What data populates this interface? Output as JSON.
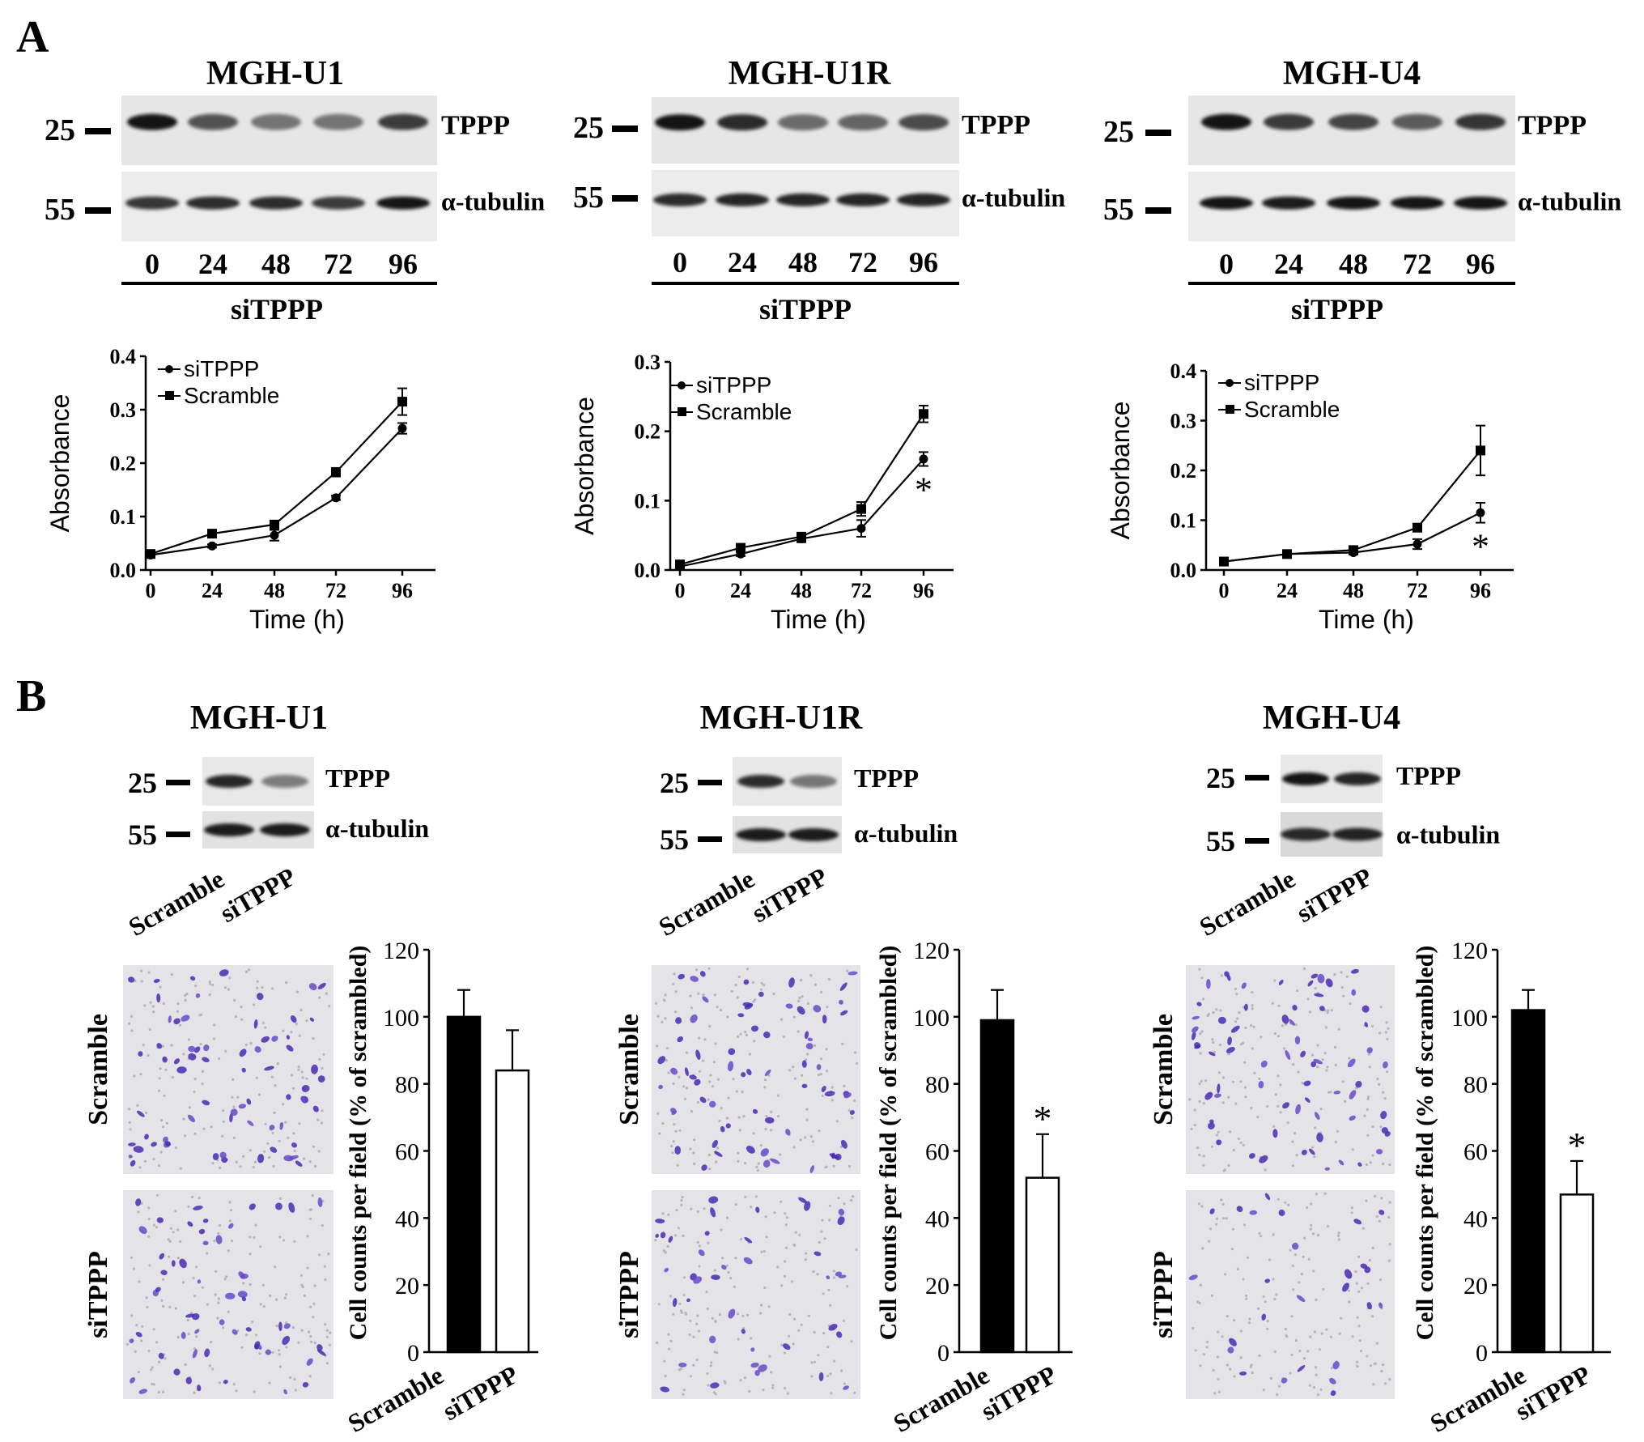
{
  "panels": {
    "A": "A",
    "B": "B"
  },
  "blot_labels": {
    "marker_25": "25",
    "marker_55": "55",
    "tppp": "TPPP",
    "tubulin": "α-tubulin"
  },
  "treatment_label": "siTPPP",
  "lane_labels": [
    "0",
    "24",
    "48",
    "72",
    "96"
  ],
  "sample_labels": [
    "Scramble",
    "siTPPP"
  ],
  "cell_lines": [
    {
      "name": "MGH-U1",
      "tppp_band_intensity": [
        0.95,
        0.55,
        0.35,
        0.35,
        0.7
      ],
      "tubulin_band_intensity": [
        0.75,
        0.8,
        0.8,
        0.7,
        0.95
      ],
      "b_tppp_band_intensity": [
        0.85,
        0.3
      ],
      "b_tubulin_band_intensity": [
        0.9,
        0.9
      ],
      "stain_density": [
        1.0,
        0.8
      ]
    },
    {
      "name": "MGH-U1R",
      "tppp_band_intensity": [
        0.95,
        0.8,
        0.4,
        0.45,
        0.6
      ],
      "tubulin_band_intensity": [
        0.8,
        0.85,
        0.85,
        0.85,
        0.85
      ],
      "b_tppp_band_intensity": [
        0.8,
        0.35
      ],
      "b_tubulin_band_intensity": [
        0.9,
        0.9
      ],
      "stain_density": [
        1.0,
        0.55
      ]
    },
    {
      "name": "MGH-U4",
      "tppp_band_intensity": [
        0.95,
        0.7,
        0.65,
        0.5,
        0.75
      ],
      "tubulin_band_intensity": [
        0.95,
        0.9,
        0.95,
        0.95,
        0.95
      ],
      "b_tppp_band_intensity": [
        0.95,
        0.85
      ],
      "b_tubulin_band_intensity": [
        0.8,
        0.85
      ],
      "stain_density": [
        1.0,
        0.3
      ]
    }
  ],
  "chart_data": [
    {
      "type": "line",
      "panel": "A",
      "cell_line": "MGH-U1",
      "xlabel": "Time (h)",
      "ylabel": "Absorbance",
      "x": [
        0,
        24,
        48,
        72,
        96
      ],
      "ylim": [
        0,
        0.4
      ],
      "yticks": [
        "0.0",
        "0.1",
        "0.2",
        "0.3",
        "0.4"
      ],
      "series": [
        {
          "name": "siTPPP",
          "marker": "circle",
          "values": [
            0.028,
            0.045,
            0.065,
            0.135,
            0.265
          ],
          "errors": [
            0.003,
            0.003,
            0.01,
            0.004,
            0.01
          ]
        },
        {
          "name": "Scramble",
          "marker": "square",
          "values": [
            0.03,
            0.068,
            0.085,
            0.183,
            0.315
          ],
          "errors": [
            0.003,
            0.004,
            0.006,
            0.008,
            0.025
          ]
        }
      ],
      "annotations": []
    },
    {
      "type": "line",
      "panel": "A",
      "cell_line": "MGH-U1R",
      "xlabel": "Time (h)",
      "ylabel": "Absorbance",
      "x": [
        0,
        24,
        48,
        72,
        96
      ],
      "ylim": [
        0,
        0.3
      ],
      "yticks": [
        "0.0",
        "0.1",
        "0.2",
        "0.3"
      ],
      "series": [
        {
          "name": "siTPPP",
          "marker": "circle",
          "values": [
            0.005,
            0.023,
            0.045,
            0.06,
            0.16
          ],
          "errors": [
            0.002,
            0.003,
            0.005,
            0.012,
            0.01
          ]
        },
        {
          "name": "Scramble",
          "marker": "square",
          "values": [
            0.008,
            0.032,
            0.048,
            0.088,
            0.225
          ],
          "errors": [
            0.002,
            0.003,
            0.005,
            0.01,
            0.012
          ]
        }
      ],
      "annotations": [
        {
          "text": "*",
          "x": 96
        }
      ]
    },
    {
      "type": "line",
      "panel": "A",
      "cell_line": "MGH-U4",
      "xlabel": "Time (h)",
      "ylabel": "Absorbance",
      "x": [
        0,
        24,
        48,
        72,
        96
      ],
      "ylim": [
        0,
        0.4
      ],
      "yticks": [
        "0.0",
        "0.1",
        "0.2",
        "0.3",
        "0.4"
      ],
      "series": [
        {
          "name": "siTPPP",
          "marker": "circle",
          "values": [
            0.017,
            0.032,
            0.035,
            0.052,
            0.115
          ],
          "errors": [
            0.003,
            0.003,
            0.004,
            0.01,
            0.02
          ]
        },
        {
          "name": "Scramble",
          "marker": "square",
          "values": [
            0.017,
            0.032,
            0.04,
            0.085,
            0.24
          ],
          "errors": [
            0.003,
            0.003,
            0.004,
            0.005,
            0.05
          ]
        }
      ],
      "annotations": [
        {
          "text": "*",
          "x": 96
        }
      ]
    },
    {
      "type": "bar",
      "panel": "B",
      "cell_line": "MGH-U1",
      "ylabel": "Cell counts per field (% of scrambled)",
      "categories": [
        "Scramble",
        "siTPPP"
      ],
      "values": [
        100,
        84
      ],
      "errors": [
        8,
        12
      ],
      "colors": [
        "#000000",
        "#ffffff"
      ],
      "ylim": [
        0,
        120
      ],
      "yticks": [
        "0",
        "20",
        "40",
        "60",
        "80",
        "100",
        "120"
      ],
      "annotations": []
    },
    {
      "type": "bar",
      "panel": "B",
      "cell_line": "MGH-U1R",
      "ylabel": "Cell counts per field (% of scrambled)",
      "categories": [
        "Scramble",
        "siTPPP"
      ],
      "values": [
        99,
        52
      ],
      "errors": [
        9,
        13
      ],
      "colors": [
        "#000000",
        "#ffffff"
      ],
      "ylim": [
        0,
        120
      ],
      "yticks": [
        "0",
        "20",
        "40",
        "60",
        "80",
        "100",
        "120"
      ],
      "annotations": [
        {
          "text": "*",
          "category": "siTPPP"
        }
      ]
    },
    {
      "type": "bar",
      "panel": "B",
      "cell_line": "MGH-U4",
      "ylabel": "Cell counts per field (% of scrambled)",
      "categories": [
        "Scramble",
        "siTPPP"
      ],
      "values": [
        102,
        47
      ],
      "errors": [
        6,
        10
      ],
      "colors": [
        "#000000",
        "#ffffff"
      ],
      "ylim": [
        0,
        120
      ],
      "yticks": [
        "0",
        "20",
        "40",
        "60",
        "80",
        "100",
        "120"
      ],
      "annotations": [
        {
          "text": "*",
          "category": "siTPPP"
        }
      ]
    }
  ]
}
